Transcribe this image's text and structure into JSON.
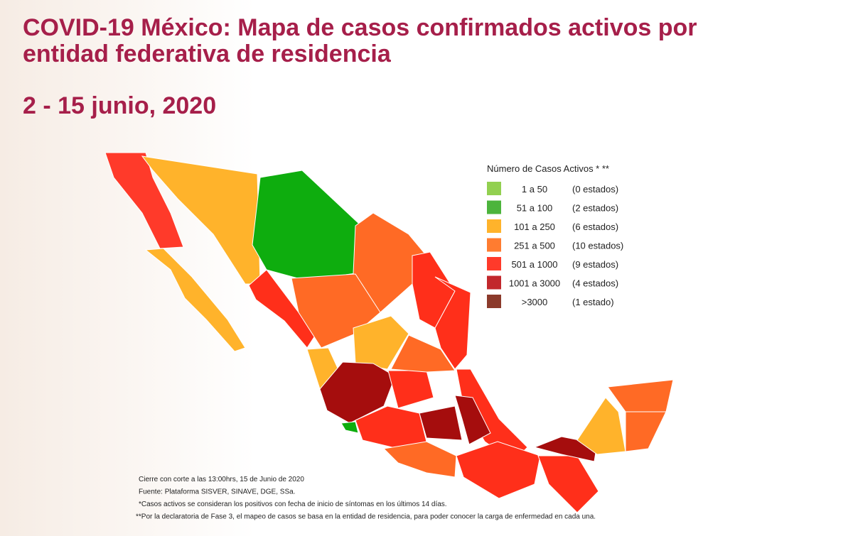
{
  "header": {
    "title_lines": [
      "COVID-19 México: Mapa de casos confirmados activos por",
      "entidad federativa de residencia"
    ],
    "date": "2 - 15 junio, 2020"
  },
  "legend": {
    "title": "Número de Casos Activos * **",
    "items": [
      {
        "range": "1 a 50",
        "count": "(0 estados)",
        "color": "#92d050"
      },
      {
        "range": "51 a 100",
        "count": "(2 estados)",
        "color": "#4cb43c"
      },
      {
        "range": "101 a 250",
        "count": "(6 estados)",
        "color": "#ffb32b"
      },
      {
        "range": "251 a 500",
        "count": "(10 estados)",
        "color": "#ff7c30"
      },
      {
        "range": "501 a 1000",
        "count": "(9 estados)",
        "color": "#ff3a2a"
      },
      {
        "range": "1001 a 3000",
        "count": "(4 estados)",
        "color": "#c2282c"
      },
      {
        "range": ">3000",
        "count": "(1 estado)",
        "color": "#8b3a2b"
      }
    ]
  },
  "notes": [
    "Cierre con corte a las 13:00hrs, 15 de Junio de 2020",
    "Fuente: Plataforma SISVER, SINAVE, DGE, SSa.",
    "*Casos activos se consideran los positivos con fecha de inicio de síntomas en los últimos 14 días.",
    "**Por la declaratoria de Fase 3, el mapeo de casos se basa en la entidad de residencia, para poder conocer la carga de enfermedad en cada una."
  ]
}
